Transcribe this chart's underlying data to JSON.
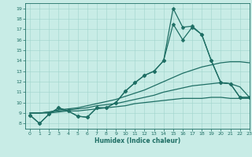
{
  "xlabel": "Humidex (Indice chaleur)",
  "xlim": [
    -0.5,
    23
  ],
  "ylim": [
    7.5,
    19.5
  ],
  "xticks": [
    0,
    1,
    2,
    3,
    4,
    5,
    6,
    7,
    8,
    9,
    10,
    11,
    12,
    13,
    14,
    15,
    16,
    17,
    18,
    19,
    20,
    21,
    22,
    23
  ],
  "yticks": [
    8,
    9,
    10,
    11,
    12,
    13,
    14,
    15,
    16,
    17,
    18,
    19
  ],
  "bg_color": "#c8ece6",
  "line_color": "#1e6e64",
  "grid_color": "#a0d4cc",
  "lines": [
    {
      "x": [
        0,
        1,
        2,
        3,
        4,
        5,
        6,
        7,
        8,
        9,
        10,
        11,
        12,
        13,
        14,
        15,
        16,
        17,
        18,
        19,
        20,
        21,
        22,
        23
      ],
      "y": [
        8.8,
        8.0,
        8.9,
        9.5,
        9.2,
        8.7,
        8.6,
        9.5,
        9.5,
        10.0,
        11.1,
        11.9,
        12.6,
        13.0,
        14.0,
        17.5,
        16.0,
        17.2,
        16.5,
        14.0,
        11.9,
        11.8,
        10.5,
        10.5
      ],
      "marker": "D",
      "markersize": 2.5,
      "linewidth": 0.9
    },
    {
      "x": [
        0,
        1,
        2,
        3,
        4,
        5,
        6,
        7,
        8,
        9,
        10,
        11,
        12,
        13,
        14,
        15,
        16,
        17,
        18,
        19,
        20,
        21,
        22,
        23
      ],
      "y": [
        8.8,
        8.0,
        8.9,
        9.5,
        9.2,
        8.7,
        8.6,
        9.5,
        9.5,
        10.0,
        11.1,
        11.9,
        12.6,
        13.0,
        14.0,
        19.0,
        17.2,
        17.3,
        16.5,
        14.0,
        11.9,
        11.8,
        10.5,
        10.5
      ],
      "marker": "D",
      "markersize": 2.5,
      "linewidth": 0.9
    },
    {
      "x": [
        0,
        1,
        2,
        3,
        4,
        5,
        6,
        7,
        8,
        9,
        10,
        11,
        12,
        13,
        14,
        15,
        16,
        17,
        18,
        19,
        20,
        21,
        22,
        23
      ],
      "y": [
        9.0,
        9.0,
        9.1,
        9.3,
        9.4,
        9.5,
        9.7,
        9.9,
        10.1,
        10.3,
        10.6,
        10.9,
        11.2,
        11.6,
        12.0,
        12.4,
        12.8,
        13.1,
        13.4,
        13.6,
        13.8,
        13.9,
        13.9,
        13.8
      ],
      "marker": null,
      "markersize": 0,
      "linewidth": 0.9
    },
    {
      "x": [
        0,
        1,
        2,
        3,
        4,
        5,
        6,
        7,
        8,
        9,
        10,
        11,
        12,
        13,
        14,
        15,
        16,
        17,
        18,
        19,
        20,
        21,
        22,
        23
      ],
      "y": [
        9.0,
        9.0,
        9.1,
        9.2,
        9.3,
        9.4,
        9.5,
        9.7,
        9.8,
        9.9,
        10.1,
        10.3,
        10.5,
        10.7,
        11.0,
        11.2,
        11.4,
        11.6,
        11.7,
        11.8,
        11.9,
        11.8,
        11.5,
        10.5
      ],
      "marker": null,
      "markersize": 0,
      "linewidth": 0.9
    },
    {
      "x": [
        0,
        1,
        2,
        3,
        4,
        5,
        6,
        7,
        8,
        9,
        10,
        11,
        12,
        13,
        14,
        15,
        16,
        17,
        18,
        19,
        20,
        21,
        22,
        23
      ],
      "y": [
        9.0,
        9.0,
        9.0,
        9.1,
        9.2,
        9.2,
        9.3,
        9.4,
        9.5,
        9.6,
        9.7,
        9.9,
        10.0,
        10.1,
        10.2,
        10.3,
        10.4,
        10.4,
        10.4,
        10.5,
        10.5,
        10.4,
        10.4,
        10.4
      ],
      "marker": null,
      "markersize": 0,
      "linewidth": 0.9
    }
  ]
}
